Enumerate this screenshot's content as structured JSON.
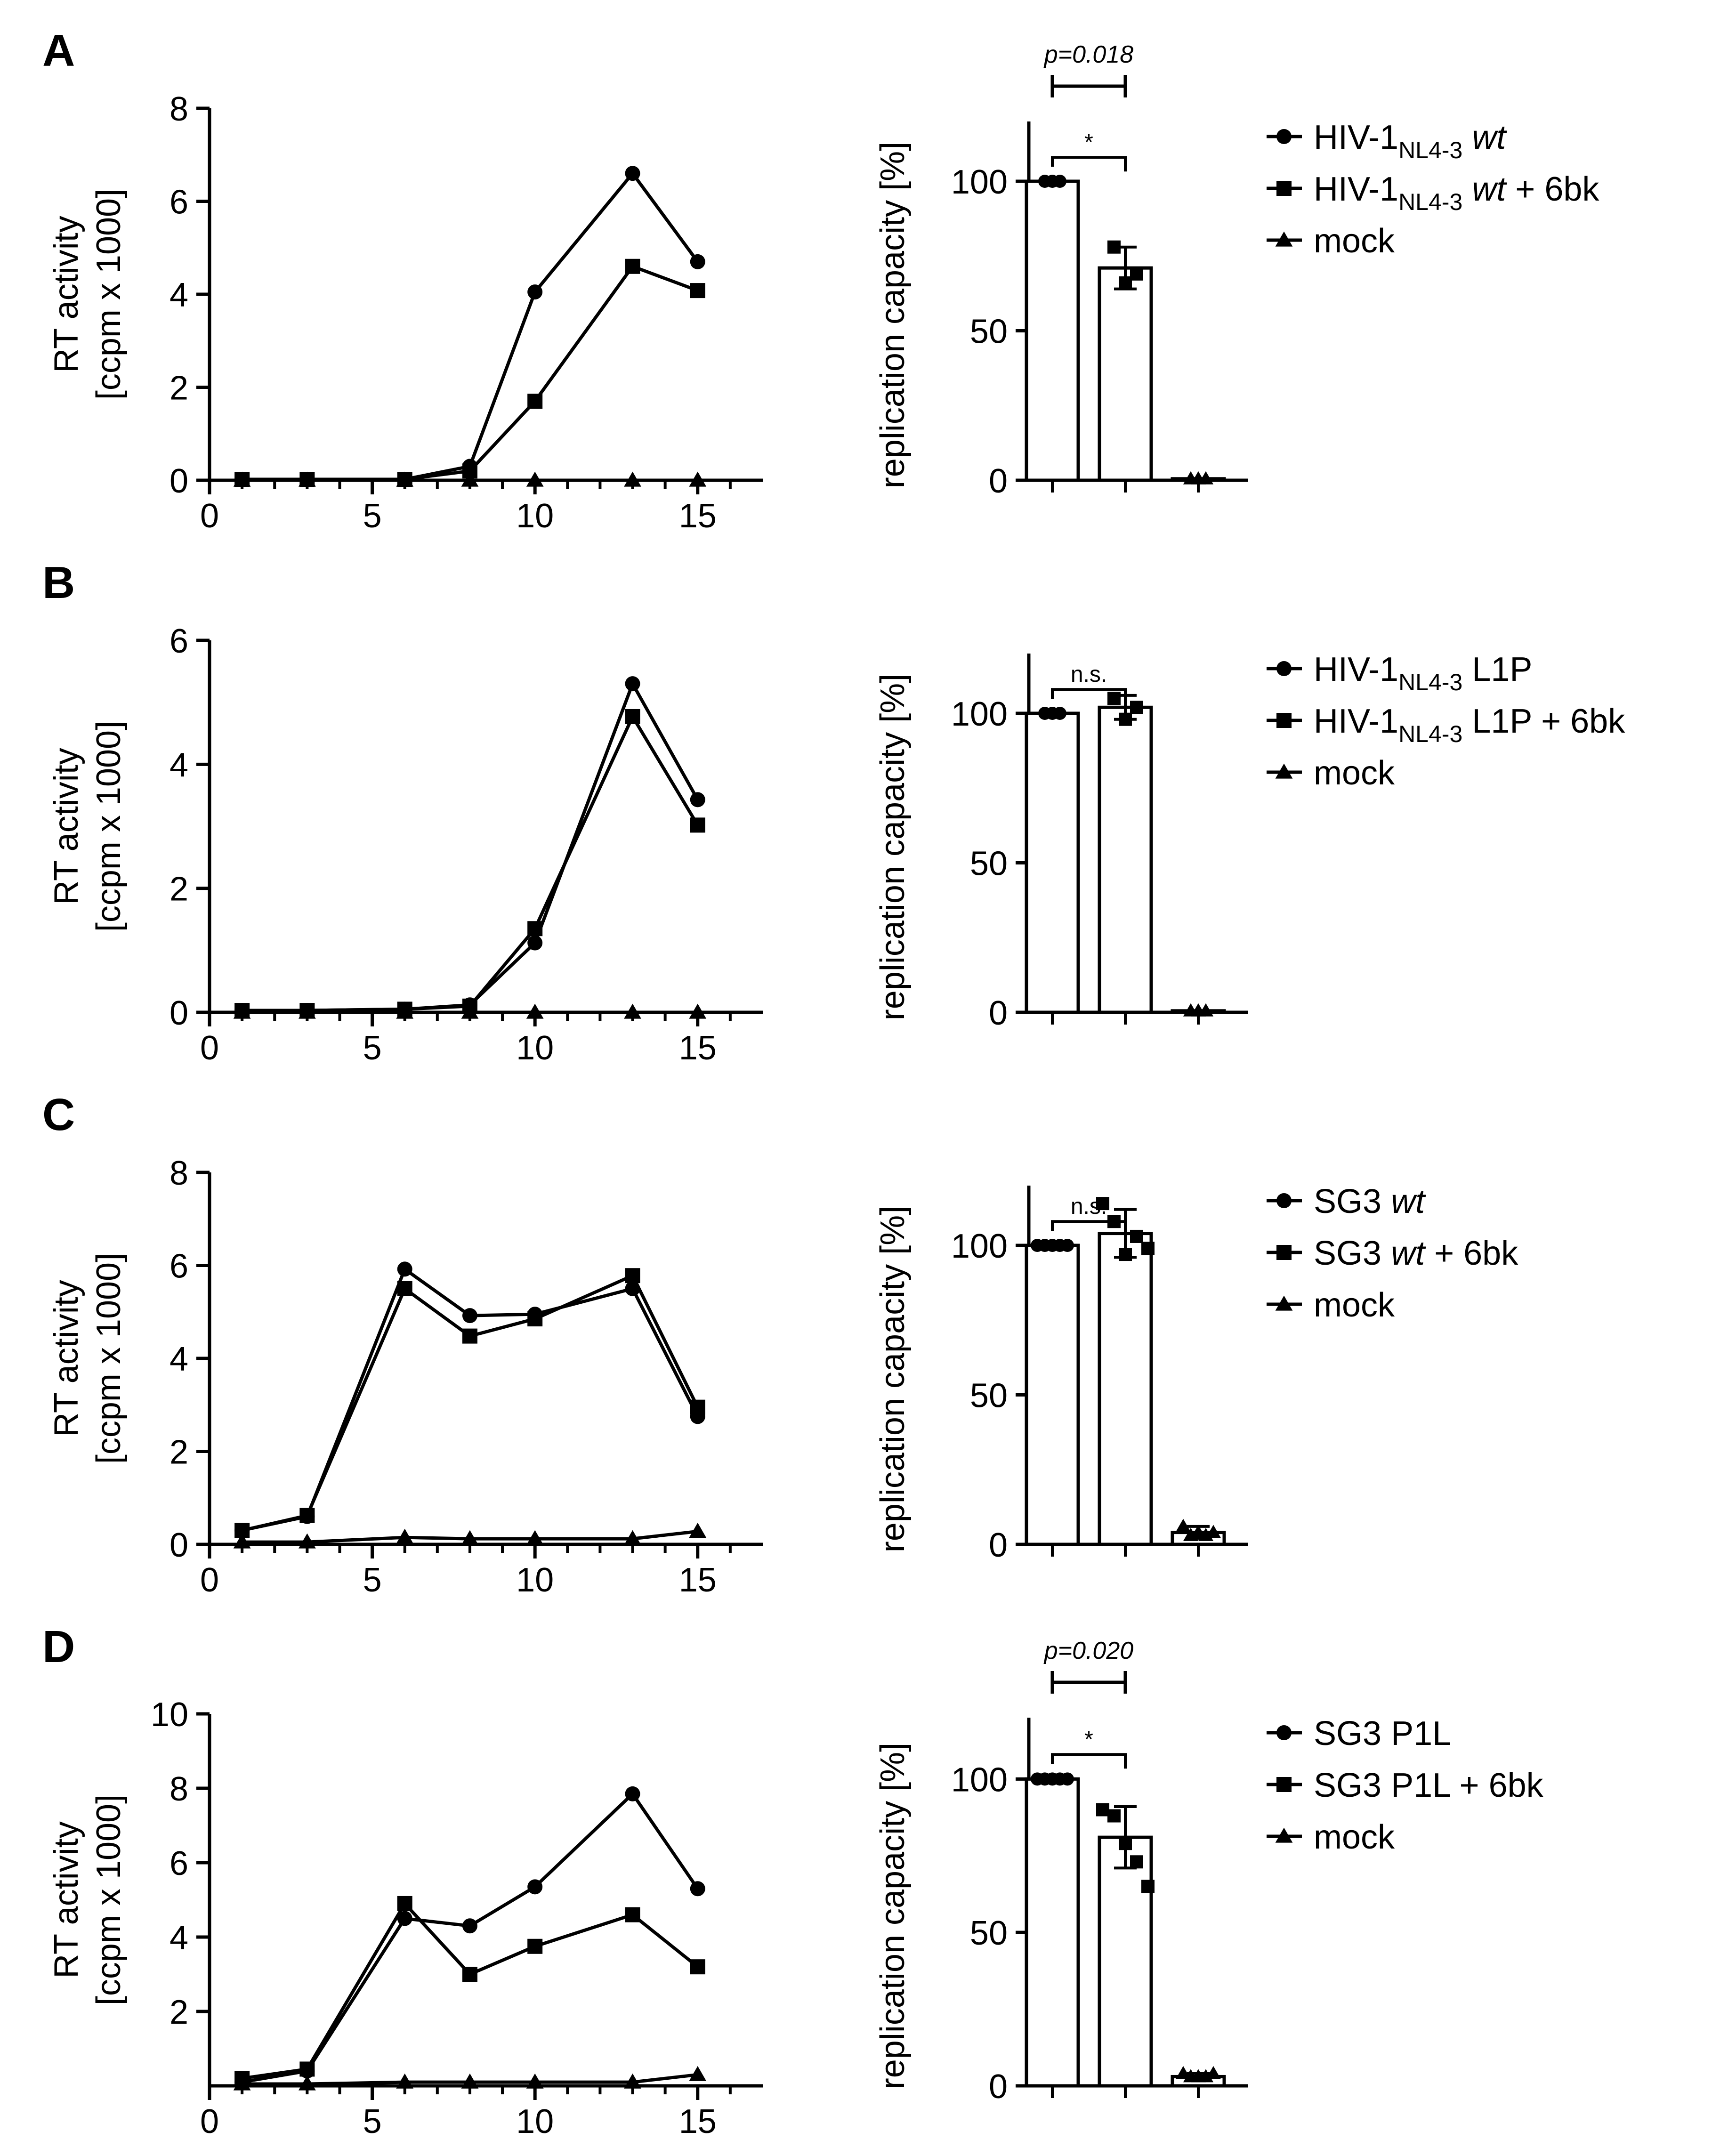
{
  "chart_data": [
    {
      "panel": "A",
      "panel_label": "A",
      "line_chart": {
        "type": "line",
        "ylabel": "RT activity",
        "ylabel2": "[ccpm x 1000]",
        "xlabel": "",
        "xlim": [
          0,
          17
        ],
        "ylim": [
          0,
          8
        ],
        "xticks": [
          0,
          5,
          10,
          15
        ],
        "yticks": [
          0,
          2,
          4,
          6,
          8
        ],
        "series": [
          {
            "name": "wt",
            "marker": "circle",
            "x": [
              1,
              3,
              6,
              8,
              10,
              13,
              15
            ],
            "y": [
              0.02,
              0.02,
              0.02,
              0.3,
              4.05,
              6.6,
              4.7
            ]
          },
          {
            "name": "wt + 6bk",
            "marker": "square",
            "x": [
              1,
              3,
              6,
              8,
              10,
              13,
              15
            ],
            "y": [
              0.02,
              0.02,
              0.02,
              0.2,
              1.7,
              4.6,
              4.08
            ]
          },
          {
            "name": "mock",
            "marker": "triangle",
            "x": [
              1,
              3,
              6,
              8,
              10,
              13,
              15
            ],
            "y": [
              0.0,
              0.0,
              0.0,
              0.0,
              0.0,
              0.0,
              0.0
            ]
          }
        ]
      },
      "bar_chart": {
        "type": "bar",
        "ylabel": "replication capacity [%]",
        "ylim": [
          0,
          120
        ],
        "yticks": [
          0,
          50,
          100
        ],
        "bars": [
          {
            "value": 100,
            "error": 0,
            "points": [
              100,
              100,
              100
            ]
          },
          {
            "value": 71,
            "error": 7,
            "points": [
              78,
              66,
              69
            ]
          },
          {
            "value": 0.5,
            "error": 0,
            "points": [
              0.5,
              0.5,
              0.5
            ]
          }
        ],
        "significance": {
          "p_text": "p=0.018",
          "star": "*"
        }
      },
      "legend": [
        {
          "marker": "circle",
          "main": "HIV-1",
          "sub": "NL4-3",
          "suffix": " ",
          "italic": "wt",
          "tail": ""
        },
        {
          "marker": "square",
          "main": "HIV-1",
          "sub": "NL4-3",
          "suffix": " ",
          "italic": "wt",
          "tail": " + 6bk"
        },
        {
          "marker": "triangle",
          "main": "mock",
          "sub": "",
          "suffix": "",
          "italic": "",
          "tail": ""
        }
      ]
    },
    {
      "panel": "B",
      "panel_label": "B",
      "line_chart": {
        "type": "line",
        "ylabel": "RT activity",
        "ylabel2": "[ccpm x 1000]",
        "xlabel": "",
        "xlim": [
          0,
          17
        ],
        "ylim": [
          0,
          6
        ],
        "xticks": [
          0,
          5,
          10,
          15
        ],
        "yticks": [
          0,
          2,
          4,
          6
        ],
        "series": [
          {
            "name": "L1P",
            "marker": "circle",
            "x": [
              1,
              3,
              6,
              8,
              10,
              13,
              15
            ],
            "y": [
              0.03,
              0.03,
              0.05,
              0.12,
              1.12,
              5.3,
              3.43
            ]
          },
          {
            "name": "L1P + 6bk",
            "marker": "square",
            "x": [
              1,
              3,
              6,
              8,
              10,
              13,
              15
            ],
            "y": [
              0.03,
              0.03,
              0.05,
              0.1,
              1.35,
              4.77,
              3.02
            ]
          },
          {
            "name": "mock",
            "marker": "triangle",
            "x": [
              1,
              3,
              6,
              8,
              10,
              13,
              15
            ],
            "y": [
              0.0,
              0.0,
              0.0,
              0.0,
              0.0,
              0.0,
              0.0
            ]
          }
        ]
      },
      "bar_chart": {
        "type": "bar",
        "ylabel": "replication capacity [%]",
        "ylim": [
          0,
          120
        ],
        "yticks": [
          0,
          50,
          100
        ],
        "bars": [
          {
            "value": 100,
            "error": 0,
            "points": [
              100,
              100,
              100
            ]
          },
          {
            "value": 102,
            "error": 4,
            "points": [
              105,
              98,
              102
            ]
          },
          {
            "value": 0.5,
            "error": 0,
            "points": [
              0.5,
              0.5,
              0.5
            ]
          }
        ],
        "significance": {
          "p_text": "",
          "star": "n.s."
        }
      },
      "legend": [
        {
          "marker": "circle",
          "main": "HIV-1",
          "sub": "NL4-3",
          "suffix": " L1P",
          "italic": "",
          "tail": ""
        },
        {
          "marker": "square",
          "main": "HIV-1",
          "sub": "NL4-3",
          "suffix": " L1P + 6bk",
          "italic": "",
          "tail": ""
        },
        {
          "marker": "triangle",
          "main": "mock",
          "sub": "",
          "suffix": "",
          "italic": "",
          "tail": ""
        }
      ]
    },
    {
      "panel": "C",
      "panel_label": "C",
      "line_chart": {
        "type": "line",
        "ylabel": "RT activity",
        "ylabel2": "[ccpm x 1000]",
        "xlabel": "",
        "xlim": [
          0,
          17
        ],
        "ylim": [
          0,
          8
        ],
        "xticks": [
          0,
          5,
          10,
          15
        ],
        "yticks": [
          0,
          2,
          4,
          6,
          8
        ],
        "series": [
          {
            "name": "SG3 wt",
            "marker": "circle",
            "x": [
              1,
              3,
              6,
              8,
              10,
              13,
              15
            ],
            "y": [
              0.3,
              0.6,
              5.92,
              4.92,
              4.95,
              5.5,
              2.75
            ]
          },
          {
            "name": "SG3 wt + 6bk",
            "marker": "square",
            "x": [
              1,
              3,
              6,
              8,
              10,
              13,
              15
            ],
            "y": [
              0.3,
              0.62,
              5.5,
              4.48,
              4.85,
              5.78,
              2.95
            ]
          },
          {
            "name": "mock",
            "marker": "triangle",
            "x": [
              1,
              3,
              6,
              8,
              10,
              13,
              15
            ],
            "y": [
              0.05,
              0.05,
              0.15,
              0.12,
              0.12,
              0.12,
              0.28
            ]
          }
        ]
      },
      "bar_chart": {
        "type": "bar",
        "ylabel": "replication capacity [%]",
        "ylim": [
          0,
          120
        ],
        "yticks": [
          0,
          50,
          100
        ],
        "bars": [
          {
            "value": 100,
            "error": 0,
            "points": [
              100,
              100,
              100,
              100,
              100
            ]
          },
          {
            "value": 104,
            "error": 8,
            "points": [
              114,
              108,
              97,
              103,
              99
            ]
          },
          {
            "value": 4,
            "error": 2,
            "points": [
              6,
              3,
              4,
              3,
              4
            ]
          }
        ],
        "significance": {
          "p_text": "",
          "star": "n.s."
        }
      },
      "legend": [
        {
          "marker": "circle",
          "main": "SG3 ",
          "sub": "",
          "suffix": "",
          "italic": "wt",
          "tail": ""
        },
        {
          "marker": "square",
          "main": "SG3 ",
          "sub": "",
          "suffix": "",
          "italic": "wt",
          "tail": " + 6bk"
        },
        {
          "marker": "triangle",
          "main": "mock",
          "sub": "",
          "suffix": "",
          "italic": "",
          "tail": ""
        }
      ]
    },
    {
      "panel": "D",
      "panel_label": "D",
      "line_chart": {
        "type": "line",
        "ylabel": "RT activity",
        "ylabel2": "[ccpm x 1000]",
        "xlabel": "",
        "xlim": [
          0,
          17
        ],
        "ylim": [
          0,
          10
        ],
        "xticks": [
          0,
          5,
          10,
          15
        ],
        "yticks": [
          2,
          4,
          6,
          8,
          10
        ],
        "series": [
          {
            "name": "SG3 P1L",
            "marker": "circle",
            "x": [
              1,
              3,
              6,
              8,
              10,
              13,
              15
            ],
            "y": [
              0.1,
              0.4,
              4.5,
              4.3,
              5.35,
              7.85,
              5.3
            ]
          },
          {
            "name": "SG3 P1L + 6bk",
            "marker": "square",
            "x": [
              1,
              3,
              6,
              8,
              10,
              13,
              15
            ],
            "y": [
              0.2,
              0.45,
              4.9,
              3.0,
              3.75,
              4.6,
              3.2
            ]
          },
          {
            "name": "mock",
            "marker": "triangle",
            "x": [
              1,
              3,
              6,
              8,
              10,
              13,
              15
            ],
            "y": [
              0.05,
              0.05,
              0.1,
              0.1,
              0.1,
              0.1,
              0.3
            ]
          }
        ]
      },
      "bar_chart": {
        "type": "bar",
        "ylabel": "replication capacity [%]",
        "ylim": [
          0,
          120
        ],
        "yticks": [
          0,
          50,
          100
        ],
        "bars": [
          {
            "value": 100,
            "error": 0,
            "points": [
              100,
              100,
              100,
              100,
              100
            ]
          },
          {
            "value": 81,
            "error": 10,
            "points": [
              90,
              88,
              79,
              73,
              65
            ]
          },
          {
            "value": 3,
            "error": 1,
            "points": [
              4,
              3,
              3,
              3,
              4
            ]
          }
        ],
        "significance": {
          "p_text": "p=0.020",
          "star": "*"
        }
      },
      "legend": [
        {
          "marker": "circle",
          "main": "SG3 P1L",
          "sub": "",
          "suffix": "",
          "italic": "",
          "tail": ""
        },
        {
          "marker": "square",
          "main": "SG3 P1L + 6bk",
          "sub": "",
          "suffix": "",
          "italic": "",
          "tail": ""
        },
        {
          "marker": "triangle",
          "main": "mock",
          "sub": "",
          "suffix": "",
          "italic": "",
          "tail": ""
        }
      ]
    }
  ]
}
